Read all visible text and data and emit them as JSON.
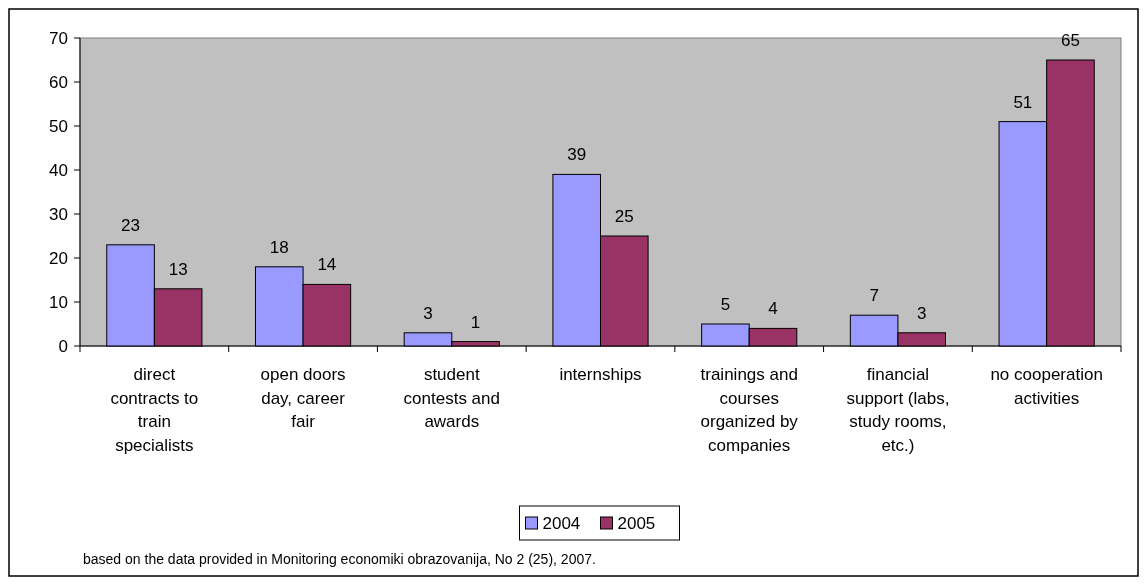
{
  "chart_data": {
    "type": "bar",
    "categories": [
      "direct contracts to train specialists",
      "open doors day, career fair",
      "student contests and awards",
      "internships",
      "trainings and courses organized by companies",
      "financial support (labs, study rooms, etc.)",
      "no cooperation activities"
    ],
    "series": [
      {
        "name": "2004",
        "color": "#9999ff",
        "values": [
          23,
          18,
          3,
          39,
          5,
          7,
          51
        ]
      },
      {
        "name": "2005",
        "color": "#993366",
        "values": [
          13,
          14,
          1,
          25,
          4,
          3,
          65
        ]
      }
    ],
    "ylim": [
      0,
      70
    ],
    "yticks": [
      0,
      10,
      20,
      30,
      40,
      50,
      60,
      70
    ],
    "data_labels": true,
    "legend": "bottom",
    "grid": false,
    "annotations": [
      "based on the data provided in Monitoring economiki obrazovanija, No 2 (25), 2007."
    ]
  }
}
